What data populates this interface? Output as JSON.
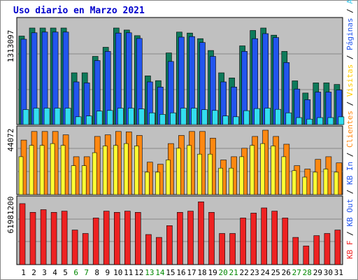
{
  "chart_data": [
    {
      "type": "bar",
      "title": "Uso diario en Marzo 2021",
      "ytick_label": "1313097",
      "categories": [
        "1",
        "2",
        "3",
        "4",
        "5",
        "6",
        "7",
        "8",
        "9",
        "10",
        "11",
        "12",
        "13",
        "14",
        "15",
        "16",
        "17",
        "18",
        "19",
        "20",
        "21",
        "22",
        "23",
        "24",
        "25",
        "26",
        "27",
        "28",
        "29",
        "30",
        "31"
      ],
      "weekend_days": [
        "6",
        "7",
        "13",
        "14",
        "20",
        "21",
        "27",
        "28"
      ],
      "ylim": [
        0,
        1313097
      ],
      "series": [
        {
          "name": "Accesos",
          "color": "#0e7a5a",
          "values": [
            1130000,
            1233000,
            1233000,
            1233000,
            1233000,
            661000,
            661000,
            871000,
            987000,
            1233000,
            1207000,
            1135000,
            622000,
            561000,
            915000,
            1181000,
            1168000,
            1097000,
            946000,
            661000,
            596000,
            1005000,
            1201000,
            1233000,
            1142000,
            934000,
            558000,
            403000,
            532000,
            532000,
            513000
          ]
        },
        {
          "name": "Páginas",
          "color": "#2255ee",
          "values": [
            1090000,
            1172000,
            1181000,
            1181000,
            1181000,
            545000,
            532000,
            817000,
            934000,
            1168000,
            1172000,
            1100000,
            545000,
            480000,
            806000,
            1117000,
            1124000,
            1048000,
            871000,
            545000,
            480000,
            934000,
            1097000,
            1161000,
            1111000,
            792000,
            454000,
            318000,
            415000,
            415000,
            441000
          ]
        },
        {
          "name": "Archivos",
          "color": "#33ddee",
          "values": [
            192000,
            210000,
            210000,
            210000,
            210000,
            100000,
            110000,
            172000,
            180000,
            210000,
            210000,
            200000,
            150000,
            130000,
            150000,
            210000,
            210000,
            190000,
            180000,
            110000,
            100000,
            178000,
            205000,
            210000,
            195000,
            150000,
            89000,
            70000,
            89000,
            89000,
            99000
          ]
        }
      ]
    },
    {
      "type": "bar",
      "ytick_label": "44072",
      "categories": [
        "1",
        "2",
        "3",
        "4",
        "5",
        "6",
        "7",
        "8",
        "9",
        "10",
        "11",
        "12",
        "13",
        "14",
        "15",
        "16",
        "17",
        "18",
        "19",
        "20",
        "21",
        "22",
        "23",
        "24",
        "25",
        "26",
        "27",
        "28",
        "29",
        "30",
        "31"
      ],
      "ylim": [
        0,
        44072
      ],
      "series": [
        {
          "name": "Visitas",
          "color": "#ff8811",
          "values": [
            37300,
            43200,
            43200,
            43200,
            40900,
            25900,
            25900,
            39800,
            40900,
            43200,
            42900,
            40500,
            22200,
            20800,
            34900,
            40500,
            43200,
            43200,
            38600,
            23700,
            25900,
            31700,
            39800,
            45600,
            39800,
            34500,
            19800,
            17500,
            24100,
            25900,
            21700
          ]
        },
        {
          "name": "Clientes",
          "color": "#ffff33",
          "values": [
            25900,
            33700,
            33700,
            34900,
            33700,
            19800,
            19800,
            28700,
            33300,
            33700,
            34900,
            33300,
            15400,
            15400,
            23700,
            31700,
            33700,
            27700,
            27700,
            18100,
            18100,
            25900,
            33700,
            34900,
            33300,
            25900,
            16400,
            12000,
            15400,
            17500,
            15400
          ]
        }
      ]
    },
    {
      "type": "bar",
      "ytick_label": "61981200",
      "categories": [
        "1",
        "2",
        "3",
        "4",
        "5",
        "6",
        "7",
        "8",
        "9",
        "10",
        "11",
        "12",
        "13",
        "14",
        "15",
        "16",
        "17",
        "18",
        "19",
        "20",
        "21",
        "22",
        "23",
        "24",
        "25",
        "26",
        "27",
        "28",
        "29",
        "30",
        "31"
      ],
      "ylim": [
        0,
        61981200
      ],
      "series": [
        {
          "name": "KB F",
          "color": "#ee2222",
          "values": [
            58700000,
            50300000,
            52900000,
            50300000,
            51500000,
            33300000,
            30000000,
            44900000,
            51500000,
            50300000,
            51500000,
            50300000,
            29000000,
            26200000,
            37500000,
            50300000,
            51500000,
            60400000,
            50300000,
            30000000,
            30000000,
            44900000,
            49600000,
            54600000,
            51500000,
            44900000,
            26200000,
            17900000,
            27900000,
            30000000,
            33300000
          ]
        }
      ]
    }
  ],
  "legend_right": [
    "KB F",
    "KB Out",
    "KB In",
    "Clientes",
    "Visitas",
    "Páginas",
    "Archivos",
    "Accesos"
  ]
}
